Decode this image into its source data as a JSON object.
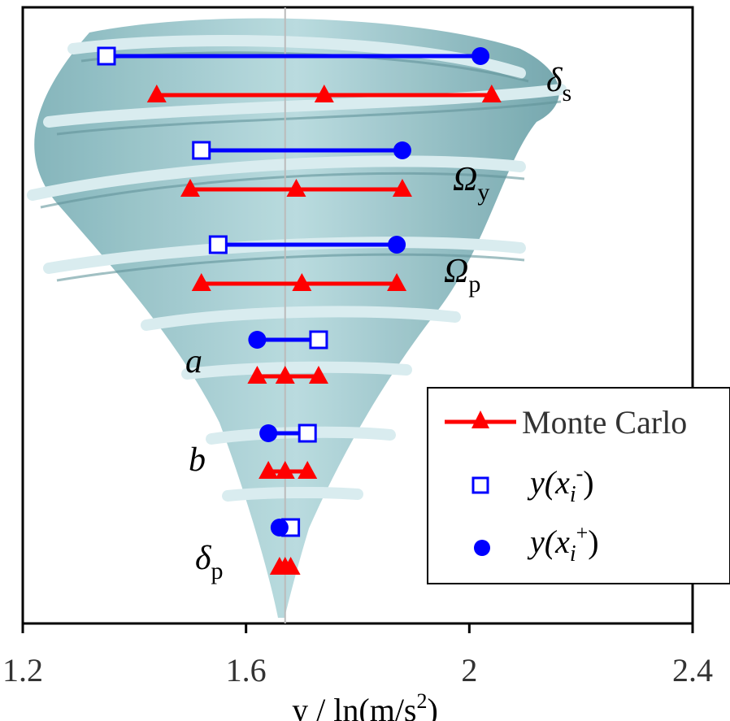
{
  "chart_data": {
    "type": "interval",
    "xlabel": "y / ln(m/s",
    "xlabel_sup": "2",
    "xlabel_close": ")",
    "xlim": [
      1.2,
      2.4
    ],
    "x_ticks": [
      "1.2",
      "1.6",
      "2",
      "2.4"
    ],
    "grid": false,
    "reference_line_x": 1.67,
    "parameters": [
      {
        "symbol": "δ",
        "sub": "s",
        "italic_symbol": true,
        "y_minus": 1.35,
        "y_plus": 2.02,
        "monte_carlo": [
          1.44,
          1.74,
          2.04
        ]
      },
      {
        "symbol": "Ω",
        "sub": "y",
        "italic_symbol": true,
        "y_minus": 1.52,
        "y_plus": 1.88,
        "monte_carlo": [
          1.5,
          1.69,
          1.88
        ]
      },
      {
        "symbol": "Ω",
        "sub": "p",
        "italic_symbol": true,
        "y_minus": 1.55,
        "y_plus": 1.87,
        "monte_carlo": [
          1.52,
          1.7,
          1.87
        ]
      },
      {
        "symbol": "a",
        "sub": "",
        "italic_symbol": true,
        "y_minus": 1.73,
        "y_plus": 1.62,
        "monte_carlo": [
          1.62,
          1.67,
          1.73
        ]
      },
      {
        "symbol": "b",
        "sub": "",
        "italic_symbol": true,
        "y_minus": 1.71,
        "y_plus": 1.64,
        "monte_carlo": [
          1.64,
          1.67,
          1.71
        ]
      },
      {
        "symbol": "δ",
        "sub": "p",
        "italic_symbol": true,
        "y_minus": 1.68,
        "y_plus": 1.66,
        "monte_carlo": [
          1.66,
          1.67,
          1.68
        ]
      }
    ],
    "legend": {
      "position": "bottom-right",
      "entries": [
        {
          "label": "Monte Carlo",
          "marker": "triangle",
          "color": "#ff0000"
        },
        {
          "label_main": "y(x",
          "label_sub": "i",
          "label_sup": "-",
          "label_close": ")",
          "marker": "open-square",
          "color": "#0000ff"
        },
        {
          "label_main": "y(x",
          "label_sub": "i",
          "label_sup": "+",
          "label_close": ")",
          "marker": "filled-circle",
          "color": "#0000ff"
        }
      ]
    },
    "colors": {
      "y_interval": "#0000ff",
      "monte_carlo": "#ff0000",
      "reference_line": "#bbbbbb",
      "background_art": "#a9cfd3"
    }
  }
}
